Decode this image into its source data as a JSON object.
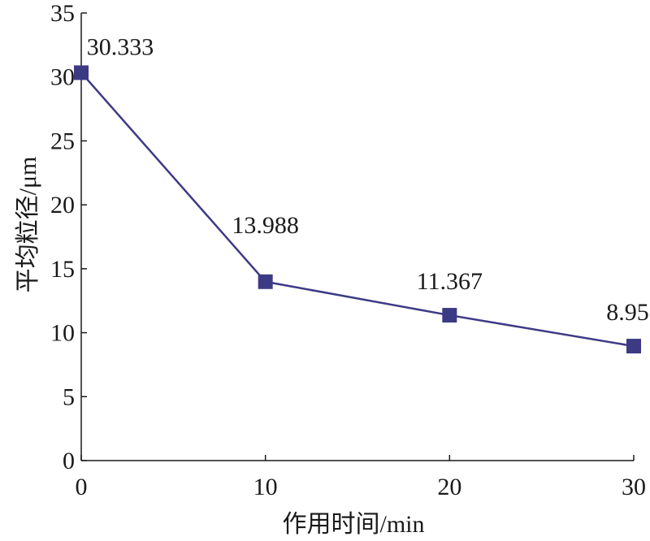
{
  "chart_data": {
    "type": "line",
    "title": "",
    "xlabel": "作用时间/min",
    "ylabel": "平均粒径/μm",
    "x": [
      0,
      10,
      20,
      30
    ],
    "series": [
      {
        "values": [
          30.333,
          13.988,
          11.367,
          8.951
        ]
      }
    ],
    "data_labels": [
      "30.333",
      "13.988",
      "11.367",
      "8.951"
    ],
    "xlim": [
      0,
      30
    ],
    "ylim": [
      0,
      35
    ],
    "x_ticks": [
      0,
      10,
      20,
      30
    ],
    "y_ticks": [
      0,
      5,
      10,
      15,
      20,
      25,
      30,
      35
    ],
    "x_tick_labels": [
      "0",
      "10",
      "20",
      "30"
    ],
    "y_tick_labels": [
      "0",
      "5",
      "10",
      "15",
      "20",
      "25",
      "30",
      "35"
    ],
    "grid": false,
    "legend": "none",
    "marker": "square",
    "line_color": "#3d3a85",
    "marker_color": "#3d3a85"
  }
}
